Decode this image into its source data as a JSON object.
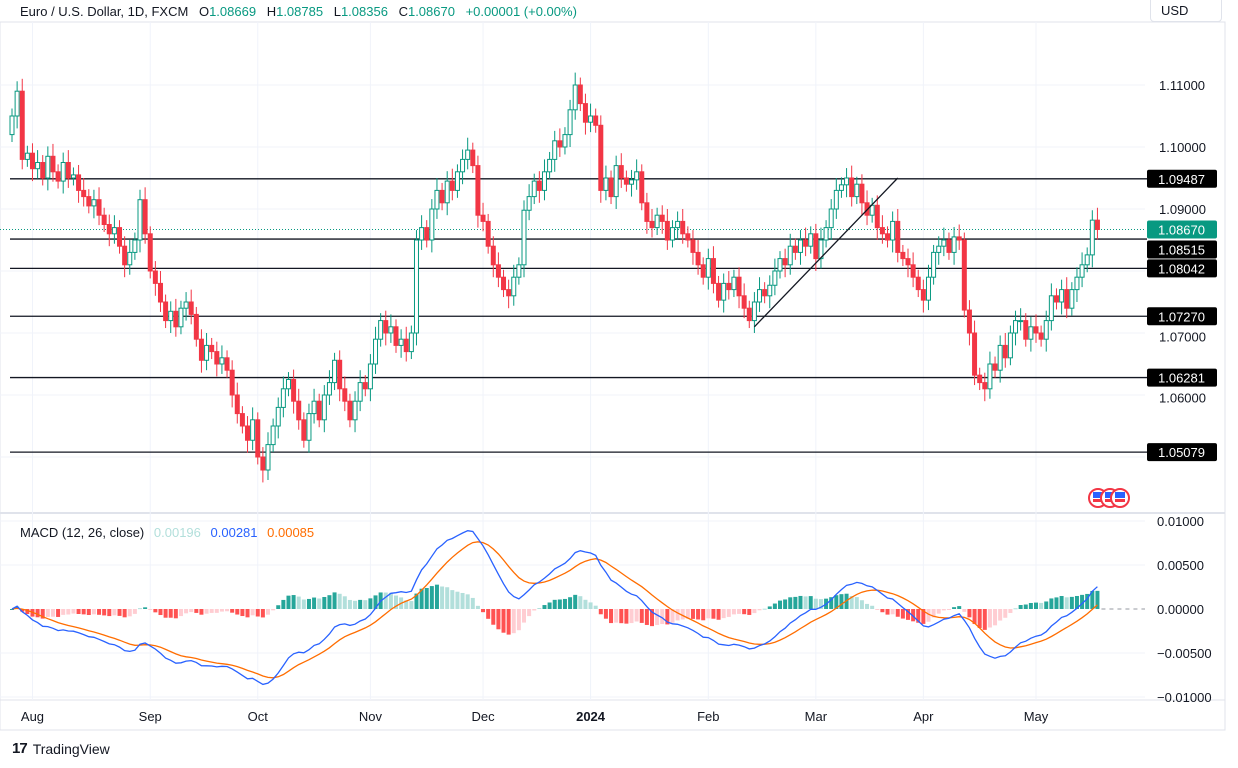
{
  "header": {
    "symbol": "Euro / U.S. Dollar, 1D, FXCM",
    "open_label": "O",
    "open": "1.08669",
    "high_label": "H",
    "high": "1.08785",
    "low_label": "L",
    "low": "1.08356",
    "close_label": "C",
    "close": "1.08670",
    "change": "+0.00001 (+0.00%)"
  },
  "currency": "USD",
  "macd_legend": {
    "label": "MACD (12, 26, close)",
    "histogram": "0.00196",
    "macd": "0.00281",
    "signal": "0.00085"
  },
  "branding": "TradingView",
  "colors": {
    "up": "#089981",
    "down": "#f23645",
    "macd": "#2962ff",
    "signal": "#ff6d00",
    "hist_up_light": "#b2dfdb",
    "hist_down_light": "#ffcdd2"
  },
  "chart_data": [
    {
      "type": "candlestick",
      "title": "Euro / U.S. Dollar, 1D, FXCM",
      "x_tick_labels": [
        "Aug",
        "Sep",
        "Oct",
        "Nov",
        "Dec",
        "2024",
        "Feb",
        "Mar",
        "Apr",
        "May"
      ],
      "y_tick_labels": [
        "1.11000",
        "1.10000",
        "1.09000",
        "1.07000",
        "1.06000"
      ],
      "ylim": [
        1.042,
        1.122
      ],
      "first_open": 1.102,
      "closes": [
        1.105,
        1.109,
        1.098,
        1.099,
        1.0965,
        1.0975,
        1.095,
        1.0985,
        1.096,
        1.0945,
        1.0975,
        1.095,
        1.0955,
        1.093,
        1.092,
        1.0905,
        1.0915,
        1.089,
        1.0875,
        1.086,
        1.087,
        1.084,
        1.081,
        1.083,
        1.085,
        1.0915,
        1.086,
        1.08,
        1.078,
        1.075,
        1.072,
        1.0735,
        1.071,
        1.074,
        1.075,
        1.073,
        1.069,
        1.0656,
        1.068,
        1.067,
        1.065,
        1.066,
        1.064,
        1.06,
        1.057,
        1.055,
        1.0527,
        1.056,
        1.05,
        1.0479,
        1.052,
        1.055,
        1.058,
        1.061,
        1.0625,
        1.059,
        1.056,
        1.0527,
        1.057,
        1.059,
        1.056,
        1.06,
        1.062,
        1.0656,
        1.061,
        1.059,
        1.056,
        1.059,
        1.062,
        1.061,
        1.065,
        1.069,
        1.072,
        1.07,
        1.071,
        1.068,
        1.069,
        1.067,
        1.07,
        1.085,
        1.087,
        1.085,
        1.09,
        1.093,
        1.091,
        1.0945,
        1.093,
        1.096,
        1.098,
        1.0995,
        1.097,
        1.089,
        1.088,
        1.084,
        1.081,
        1.079,
        1.077,
        1.076,
        1.079,
        1.081,
        1.0898,
        1.092,
        1.0945,
        1.093,
        1.096,
        1.098,
        1.101,
        1.1,
        1.102,
        1.106,
        1.11,
        1.107,
        1.104,
        1.105,
        1.1035,
        1.093,
        1.095,
        1.092,
        1.097,
        1.095,
        1.094,
        1.0947,
        1.096,
        1.091,
        1.088,
        1.087,
        1.089,
        1.088,
        1.085,
        1.087,
        1.088,
        1.086,
        1.085,
        1.083,
        1.081,
        1.079,
        1.082,
        1.078,
        1.0753,
        1.078,
        1.077,
        1.079,
        1.076,
        1.074,
        1.072,
        1.075,
        1.077,
        1.076,
        1.0777,
        1.08,
        1.082,
        1.081,
        1.084,
        1.083,
        1.085,
        1.084,
        1.086,
        1.082,
        1.085,
        1.087,
        1.09,
        1.093,
        1.0939,
        1.095,
        1.092,
        1.094,
        1.091,
        1.089,
        1.0906,
        1.087,
        1.086,
        1.085,
        1.088,
        1.083,
        1.082,
        1.081,
        1.079,
        1.077,
        1.0753,
        1.079,
        1.083,
        1.084,
        1.085,
        1.083,
        1.0855,
        1.085,
        1.0737,
        1.07,
        1.0632,
        1.062,
        1.061,
        1.065,
        1.064,
        1.068,
        1.066,
        1.07,
        1.072,
        1.072,
        1.069,
        1.071,
        1.07,
        1.069,
        1.072,
        1.076,
        1.075,
        1.077,
        1.074,
        1.077,
        1.079,
        1.081,
        1.0826,
        1.0882,
        1.0867
      ],
      "horizontal_levels": [
        {
          "value": 1.09487,
          "label": "1.09487"
        },
        {
          "value": 1.08515,
          "label": "1.08515"
        },
        {
          "value": 1.08042,
          "label": "1.08042"
        },
        {
          "value": 1.0727,
          "label": "1.07270"
        },
        {
          "value": 1.06281,
          "label": "1.06281"
        },
        {
          "value": 1.05079,
          "label": "1.05079"
        }
      ],
      "last_price": {
        "value": 1.0867,
        "label": "1.08670"
      },
      "trendline": {
        "from": [
          145,
          1.071
        ],
        "to": [
          173,
          1.095
        ]
      },
      "grid": true
    },
    {
      "type": "macd",
      "fast": 12,
      "slow": 26,
      "signal": 9,
      "y_tick_labels": [
        "0.01000",
        "0.00500",
        "0.00000",
        "−0.00500",
        "−0.01000"
      ],
      "ylim": [
        -0.01,
        0.01
      ]
    }
  ]
}
